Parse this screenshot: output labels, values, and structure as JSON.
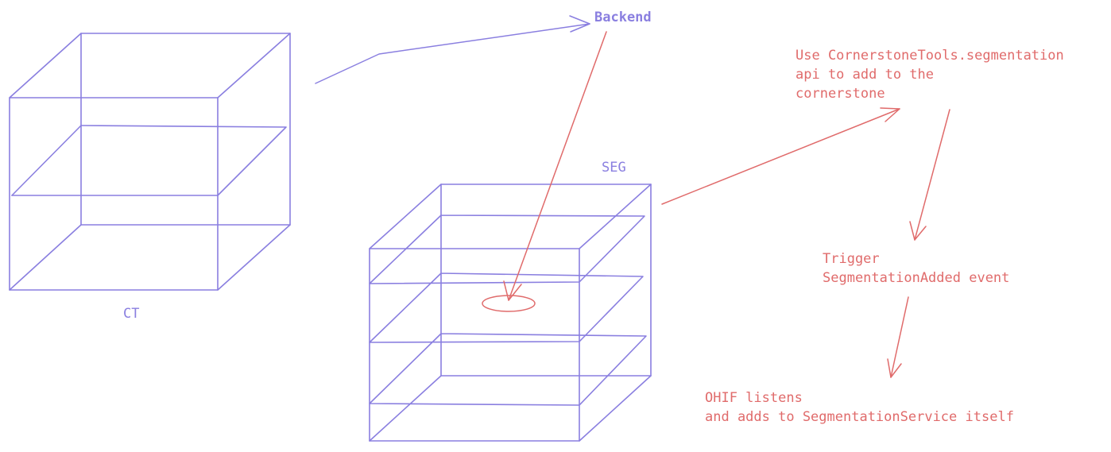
{
  "colors": {
    "structure": "#8a7fe0",
    "flow": "#e06b6b",
    "background": "#ffffff"
  },
  "labels": {
    "ct": "CT",
    "seg": "SEG",
    "backend": "Backend",
    "step1": [
      "Use CornerstoneTools.segmentation",
      "api to add to the",
      "cornerstone"
    ],
    "step2": [
      "Trigger",
      "SegmentationAdded event"
    ],
    "step3": [
      "OHIF listens",
      "and adds to SegmentationService itself"
    ]
  }
}
